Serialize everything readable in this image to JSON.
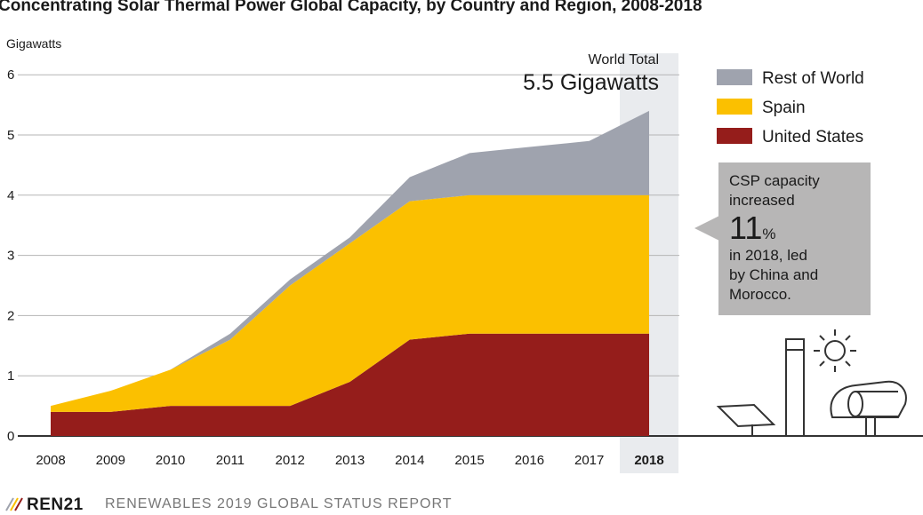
{
  "title": "Concentrating Solar Thermal Power Global Capacity, by Country and Region, 2008-2018",
  "y_unit_label": "Gigawatts",
  "world_total": {
    "label": "World Total",
    "value": "5.5 Gigawatts"
  },
  "callout": {
    "line1": "CSP capacity",
    "line2": "increased",
    "big_number": "11",
    "percent_sign": "%",
    "line3": "in 2018, led",
    "line4": "by China and",
    "line5": "Morocco."
  },
  "footer": {
    "brand": "REN21",
    "report": "RENEWABLES 2019 GLOBAL STATUS REPORT"
  },
  "colors": {
    "rest_of_world": "#9fa3ae",
    "spain": "#fbc000",
    "united_states": "#951d1b",
    "highlight_band": "#e9ebee",
    "callout": "#b7b6b6"
  },
  "icons": [
    "solar-panel-icon",
    "solar-tower-icon",
    "sun-icon",
    "parabolic-trough-icon"
  ],
  "chart_data": {
    "type": "area",
    "stacked": true,
    "title": "Concentrating Solar Thermal Power Global Capacity, by Country and Region, 2008-2018",
    "ylabel": "Gigawatts",
    "ylim": [
      0,
      6
    ],
    "yticks": [
      "0",
      "1",
      "2",
      "3",
      "4",
      "5",
      "6"
    ],
    "grid": true,
    "legend_position": "right",
    "x": [
      "2008",
      "2009",
      "2010",
      "2011",
      "2012",
      "2013",
      "2014",
      "2015",
      "2016",
      "2017",
      "2018"
    ],
    "highlight_x": "2018",
    "series": [
      {
        "name": "United States",
        "color": "#951d1b",
        "values": [
          0.4,
          0.4,
          0.5,
          0.5,
          0.5,
          0.9,
          1.6,
          1.7,
          1.7,
          1.7,
          1.7
        ]
      },
      {
        "name": "Spain",
        "color": "#fbc000",
        "values": [
          0.1,
          0.35,
          0.6,
          1.1,
          2.0,
          2.3,
          2.3,
          2.3,
          2.3,
          2.3,
          2.3
        ]
      },
      {
        "name": "Rest of World",
        "color": "#9fa3ae",
        "values": [
          0.0,
          0.0,
          0.0,
          0.1,
          0.1,
          0.1,
          0.4,
          0.7,
          0.8,
          0.9,
          1.4
        ]
      }
    ],
    "legend_order": [
      "Rest of World",
      "Spain",
      "United States"
    ]
  }
}
